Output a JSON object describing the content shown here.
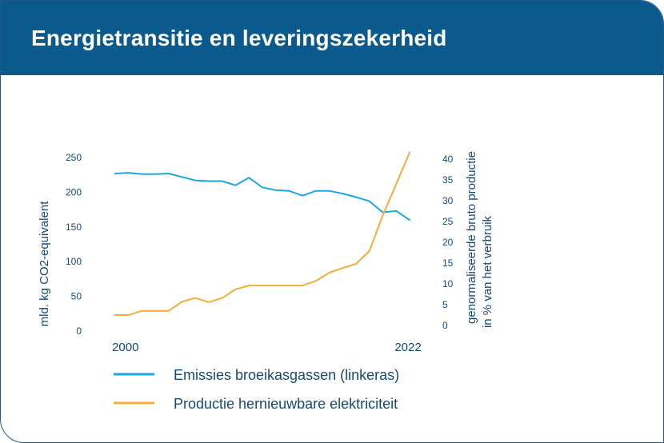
{
  "title": "Energietransitie en leveringszekerheid",
  "colors": {
    "header": "#0b5a8e",
    "text": "#154a78",
    "emissions": "#1ba7e6",
    "renewables": "#f6ac3a"
  },
  "chart_data": {
    "type": "line",
    "title": "Energietransitie en leveringszekerheid",
    "x": [
      2000,
      2001,
      2002,
      2003,
      2004,
      2005,
      2006,
      2007,
      2008,
      2009,
      2010,
      2011,
      2012,
      2013,
      2014,
      2015,
      2016,
      2017,
      2018,
      2019,
      2020,
      2021,
      2022
    ],
    "x_tick_labels": [
      "2000",
      "2022"
    ],
    "xlim": [
      1999,
      2022
    ],
    "left_axis": {
      "label": "mld. kg CO2-equivalent",
      "ylim": [
        0,
        250
      ],
      "ticks": [
        0,
        50,
        100,
        150,
        200,
        250
      ]
    },
    "right_axis": {
      "label_line1": "genormaliseerde bruto productie",
      "label_line2": "in % van het verbruik",
      "ylim": [
        0,
        40
      ],
      "ticks": [
        0,
        5,
        10,
        15,
        20,
        25,
        30,
        35,
        40
      ]
    },
    "series": [
      {
        "name": "Emissies broeikasgassen (linkeras)",
        "axis": "left",
        "color": "#1ba7e6",
        "values": [
          227,
          228,
          226,
          226,
          227,
          222,
          217,
          216,
          216,
          210,
          221,
          207,
          203,
          202,
          195,
          202,
          202,
          198,
          193,
          187,
          171,
          173,
          160
        ]
      },
      {
        "name": "Productie hernieuwbare elektriciteit",
        "axis": "right",
        "color": "#f6ac3a",
        "values": [
          2.5,
          2.5,
          3.5,
          3.5,
          3.5,
          5.7,
          6.6,
          5.6,
          6.6,
          8.7,
          9.6,
          9.6,
          9.6,
          9.6,
          9.6,
          10.7,
          12.7,
          13.8,
          14.8,
          17.9,
          26.5,
          34.0,
          41.6
        ]
      }
    ],
    "grid": false,
    "legend_position": "bottom"
  }
}
